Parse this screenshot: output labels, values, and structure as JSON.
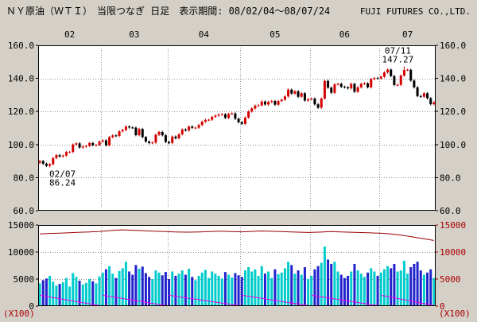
{
  "header": {
    "title": "ＮＹ原油（ＷＴＩ）　当限つなぎ 日足　表示期間: 08/02/04～08/07/24",
    "brand": "FUJI FUTURES CO.,LTD."
  },
  "chart_data": {
    "type": "candlestick+volume",
    "title": "ＮＹ原油（ＷＴＩ） 当限つなぎ 日足",
    "period": "08/02/04～08/07/24",
    "price_axis": {
      "min": 60,
      "max": 160,
      "ticks": [
        "160.0",
        "140.0",
        "120.0",
        "100.0",
        "80.0",
        "60.0"
      ]
    },
    "volume_axis": {
      "min": 0,
      "max": 15000,
      "ticks": [
        "15000",
        "10000",
        "5000",
        "0"
      ],
      "unit": "(X100)"
    },
    "month_labels": [
      "02",
      "03",
      "04",
      "05",
      "06",
      "07"
    ],
    "annotations": [
      {
        "date": "02/07",
        "lines": [
          "02/07",
          "86.24"
        ],
        "position": "below"
      },
      {
        "date": "07/11",
        "lines": [
          "07/11",
          "147.27"
        ],
        "position": "above"
      }
    ],
    "colors": {
      "up": "#d40000",
      "down": "#000000",
      "vol_up": "#00cccc",
      "vol_down": "#2222cc",
      "oi_line": "#990000",
      "expiry_line": "#ee00ee",
      "grid": "#909090",
      "axis_secondary": "#aa0000",
      "panel_bg": "#ffffff",
      "border": "#000000"
    },
    "legend_note": "candles: [date, open, high, low, close, volume(x100), open_interest(x100), expiry_series(x100)]",
    "candles": [
      [
        "02/04",
        89.0,
        90.7,
        88.3,
        90.0,
        4200,
        13350,
        2000
      ],
      [
        "02/05",
        90.0,
        90.7,
        87.7,
        88.4,
        4800,
        13380,
        1895
      ],
      [
        "02/06",
        88.4,
        89.1,
        86.4,
        87.1,
        5100,
        13400,
        1790
      ],
      [
        "02/07",
        87.1,
        88.8,
        86.24,
        88.1,
        5600,
        13430,
        1685
      ],
      [
        "02/08",
        88.1,
        92.5,
        87.4,
        91.8,
        4500,
        13450,
        1580
      ],
      [
        "02/11",
        91.8,
        94.3,
        91.1,
        93.6,
        3800,
        13470,
        1475
      ],
      [
        "02/12",
        93.6,
        94.3,
        92.1,
        92.8,
        4100,
        13500,
        1370
      ],
      [
        "02/13",
        92.8,
        94.0,
        92.1,
        93.3,
        4400,
        13520,
        1265
      ],
      [
        "02/14",
        93.3,
        96.2,
        92.6,
        95.5,
        5200,
        13550,
        1160
      ],
      [
        "02/15",
        95.5,
        96.2,
        94.8,
        95.5,
        3600,
        13570,
        1055
      ],
      [
        "02/19",
        95.5,
        100.7,
        94.8,
        100.0,
        6100,
        13600,
        950
      ],
      [
        "02/20",
        100.0,
        101.4,
        99.3,
        100.7,
        5400,
        13620,
        845
      ],
      [
        "02/21",
        100.7,
        101.4,
        97.5,
        98.2,
        4700,
        13650,
        740
      ],
      [
        "02/22",
        98.2,
        99.5,
        97.5,
        98.8,
        4000,
        13670,
        635
      ],
      [
        "02/25",
        98.8,
        99.9,
        98.1,
        99.2,
        4300,
        13700,
        530
      ],
      [
        "02/26",
        99.2,
        101.6,
        98.5,
        100.9,
        5000,
        13720,
        425
      ],
      [
        "02/27",
        100.9,
        101.6,
        98.9,
        99.6,
        4600,
        13750,
        320
      ],
      [
        "02/28",
        99.6,
        100.3,
        98.9,
        99.7,
        4200,
        13770,
        215
      ],
      [
        "02/29",
        99.7,
        102.5,
        99.0,
        101.8,
        5500,
        13800,
        110
      ],
      [
        "03/03",
        101.8,
        103.2,
        101.1,
        102.5,
        6200,
        13850,
        2000
      ],
      [
        "03/04",
        102.5,
        103.2,
        98.8,
        99.5,
        6800,
        13900,
        1900
      ],
      [
        "03/05",
        99.5,
        105.2,
        98.8,
        104.5,
        7400,
        13950,
        1800
      ],
      [
        "03/06",
        104.5,
        106.2,
        103.8,
        105.5,
        6000,
        14000,
        1700
      ],
      [
        "03/07",
        105.5,
        106.2,
        104.5,
        105.2,
        5200,
        14050,
        1600
      ],
      [
        "03/10",
        105.2,
        108.7,
        104.5,
        108.0,
        6500,
        14080,
        1500
      ],
      [
        "03/11",
        108.0,
        109.5,
        107.3,
        108.8,
        7000,
        14100,
        1400
      ],
      [
        "03/12",
        108.8,
        111.6,
        108.1,
        110.9,
        8200,
        14080,
        1300
      ],
      [
        "03/13",
        110.9,
        111.6,
        109.6,
        110.3,
        6400,
        14050,
        1200
      ],
      [
        "03/14",
        110.3,
        111.0,
        109.5,
        110.2,
        5800,
        14020,
        1100
      ],
      [
        "03/17",
        110.2,
        110.9,
        105.0,
        105.7,
        7600,
        14000,
        1000
      ],
      [
        "03/18",
        105.7,
        110.1,
        105.0,
        109.4,
        6900,
        13980,
        900
      ],
      [
        "03/19",
        109.4,
        110.1,
        103.8,
        104.5,
        7300,
        13950,
        800
      ],
      [
        "03/20",
        104.5,
        105.2,
        101.1,
        101.8,
        6100,
        13920,
        700
      ],
      [
        "03/24",
        101.8,
        102.5,
        100.2,
        100.9,
        5400,
        13900,
        600
      ],
      [
        "03/25",
        100.9,
        101.9,
        100.2,
        101.2,
        5000,
        13880,
        500
      ],
      [
        "03/26",
        101.2,
        106.6,
        100.5,
        105.9,
        6600,
        13850,
        400
      ],
      [
        "03/27",
        105.9,
        108.3,
        105.2,
        107.6,
        6200,
        13820,
        300
      ],
      [
        "03/28",
        107.6,
        108.3,
        104.9,
        105.6,
        5700,
        13800,
        200
      ],
      [
        "03/31",
        105.6,
        106.3,
        100.9,
        101.6,
        6300,
        13780,
        100
      ],
      [
        "04/01",
        101.6,
        102.3,
        100.2,
        100.9,
        5000,
        13760,
        2000
      ],
      [
        "04/02",
        100.9,
        105.5,
        100.2,
        104.8,
        6400,
        13740,
        1910
      ],
      [
        "04/03",
        104.8,
        105.5,
        103.1,
        103.8,
        5600,
        13720,
        1820
      ],
      [
        "04/04",
        103.8,
        106.9,
        103.1,
        106.2,
        6000,
        13700,
        1730
      ],
      [
        "04/07",
        106.2,
        109.8,
        105.5,
        109.1,
        6600,
        13690,
        1640
      ],
      [
        "04/08",
        109.1,
        109.8,
        107.8,
        108.5,
        5800,
        13680,
        1550
      ],
      [
        "04/09",
        108.5,
        111.6,
        107.8,
        110.9,
        6900,
        13670,
        1460
      ],
      [
        "04/10",
        110.9,
        111.6,
        109.4,
        110.1,
        5400,
        13690,
        1370
      ],
      [
        "04/11",
        110.1,
        110.8,
        109.4,
        110.2,
        4800,
        13700,
        1280
      ],
      [
        "04/14",
        110.2,
        112.5,
        109.5,
        111.8,
        5600,
        13720,
        1190
      ],
      [
        "04/15",
        111.8,
        114.5,
        111.1,
        113.8,
        6200,
        13740,
        1100
      ],
      [
        "04/16",
        113.8,
        115.6,
        113.1,
        114.9,
        6700,
        13760,
        1010
      ],
      [
        "04/17",
        114.9,
        115.6,
        114.2,
        115.0,
        5200,
        13780,
        920
      ],
      [
        "04/18",
        115.0,
        117.4,
        114.3,
        116.7,
        6400,
        13800,
        830
      ],
      [
        "04/21",
        116.7,
        118.2,
        116.0,
        117.5,
        6000,
        13820,
        740
      ],
      [
        "04/22",
        117.5,
        118.8,
        116.8,
        118.1,
        5600,
        13840,
        650
      ],
      [
        "04/23",
        118.1,
        119.0,
        117.4,
        118.3,
        5100,
        13850,
        560
      ],
      [
        "04/24",
        118.3,
        119.0,
        115.4,
        116.1,
        6300,
        13830,
        470
      ],
      [
        "04/25",
        116.1,
        119.2,
        115.4,
        118.5,
        5800,
        13810,
        380
      ],
      [
        "04/28",
        118.5,
        119.5,
        117.8,
        118.8,
        5300,
        13790,
        290
      ],
      [
        "04/29",
        118.8,
        119.5,
        114.9,
        115.6,
        6100,
        13770,
        200
      ],
      [
        "04/30",
        115.6,
        116.3,
        112.8,
        113.5,
        5700,
        13750,
        110
      ],
      [
        "05/01",
        113.5,
        114.2,
        111.8,
        112.5,
        5400,
        13740,
        2000
      ],
      [
        "05/02",
        112.5,
        117.0,
        111.8,
        116.3,
        6600,
        13760,
        1905
      ],
      [
        "05/05",
        116.3,
        120.7,
        115.6,
        120.0,
        7200,
        13790,
        1810
      ],
      [
        "05/06",
        120.0,
        122.5,
        119.3,
        121.8,
        6400,
        13820,
        1715
      ],
      [
        "05/07",
        121.8,
        124.2,
        121.1,
        123.5,
        6800,
        13850,
        1620
      ],
      [
        "05/08",
        123.5,
        124.4,
        122.8,
        123.7,
        5600,
        13880,
        1525
      ],
      [
        "05/09",
        123.7,
        126.7,
        123.0,
        126.0,
        7400,
        13900,
        1430
      ],
      [
        "05/12",
        126.0,
        126.7,
        123.5,
        124.2,
        6000,
        13880,
        1335
      ],
      [
        "05/13",
        124.2,
        126.5,
        123.5,
        125.8,
        6400,
        13860,
        1240
      ],
      [
        "05/14",
        125.8,
        127.0,
        125.1,
        126.3,
        5200,
        13840,
        1145
      ],
      [
        "05/15",
        126.3,
        127.0,
        123.4,
        124.1,
        6800,
        13820,
        1050
      ],
      [
        "05/16",
        124.1,
        127.0,
        123.4,
        126.3,
        5900,
        13800,
        955
      ],
      [
        "05/19",
        126.3,
        127.8,
        125.6,
        127.1,
        6200,
        13780,
        860
      ],
      [
        "05/20",
        127.1,
        129.8,
        126.4,
        129.1,
        7000,
        13760,
        765
      ],
      [
        "05/21",
        129.1,
        133.9,
        128.4,
        133.2,
        8200,
        13740,
        670
      ],
      [
        "05/22",
        133.2,
        133.9,
        130.1,
        130.8,
        7600,
        13720,
        575
      ],
      [
        "05/23",
        130.8,
        132.9,
        130.1,
        132.2,
        6000,
        13700,
        480
      ],
      [
        "05/27",
        132.2,
        132.9,
        128.2,
        128.9,
        6600,
        13680,
        385
      ],
      [
        "05/28",
        128.9,
        131.7,
        128.2,
        131.0,
        5800,
        13660,
        290
      ],
      [
        "05/29",
        131.0,
        131.7,
        125.9,
        126.6,
        7200,
        13640,
        195
      ],
      [
        "05/30",
        126.6,
        128.1,
        125.9,
        127.4,
        5000,
        13620,
        100
      ],
      [
        "06/02",
        127.4,
        128.5,
        126.7,
        127.8,
        5600,
        13640,
        2000
      ],
      [
        "06/03",
        127.8,
        128.5,
        123.6,
        124.3,
        6800,
        13660,
        1905
      ],
      [
        "06/04",
        124.3,
        125.0,
        121.6,
        122.3,
        7400,
        13680,
        1810
      ],
      [
        "06/05",
        122.3,
        128.5,
        121.6,
        127.8,
        8000,
        13700,
        1715
      ],
      [
        "06/06",
        127.8,
        139.2,
        127.1,
        138.5,
        11000,
        13730,
        1620
      ],
      [
        "06/09",
        138.5,
        139.2,
        133.7,
        134.4,
        8600,
        13760,
        1525
      ],
      [
        "06/10",
        134.4,
        135.1,
        130.6,
        131.3,
        7800,
        13780,
        1430
      ],
      [
        "06/11",
        131.3,
        137.1,
        130.6,
        136.4,
        8200,
        13760,
        1335
      ],
      [
        "06/12",
        136.4,
        137.4,
        135.7,
        136.7,
        6400,
        13740,
        1240
      ],
      [
        "06/13",
        136.7,
        137.4,
        134.2,
        134.9,
        5800,
        13720,
        1145
      ],
      [
        "06/16",
        134.9,
        135.6,
        133.9,
        134.6,
        5200,
        13700,
        1050
      ],
      [
        "06/17",
        134.6,
        135.3,
        133.3,
        134.0,
        5600,
        13680,
        955
      ],
      [
        "06/18",
        134.0,
        137.4,
        133.3,
        136.7,
        6400,
        13660,
        860
      ],
      [
        "06/19",
        136.7,
        137.4,
        131.2,
        131.9,
        7800,
        13640,
        765
      ],
      [
        "06/20",
        131.9,
        135.3,
        131.2,
        134.6,
        6600,
        13620,
        670
      ],
      [
        "06/23",
        134.6,
        137.4,
        133.9,
        136.7,
        6000,
        13600,
        575
      ],
      [
        "06/24",
        136.7,
        137.7,
        136.0,
        137.0,
        5400,
        13580,
        480
      ],
      [
        "06/25",
        137.0,
        137.7,
        133.9,
        134.6,
        6200,
        13560,
        385
      ],
      [
        "06/26",
        134.6,
        140.3,
        133.9,
        139.6,
        7000,
        13540,
        290
      ],
      [
        "06/27",
        139.6,
        140.9,
        138.9,
        140.2,
        6400,
        13520,
        195
      ],
      [
        "06/30",
        140.2,
        140.9,
        139.3,
        140.0,
        5600,
        13500,
        100
      ],
      [
        "07/01",
        140.0,
        141.7,
        139.3,
        141.0,
        6200,
        13470,
        2000
      ],
      [
        "07/02",
        141.0,
        144.3,
        140.3,
        143.6,
        6800,
        13440,
        1882
      ],
      [
        "07/03",
        143.6,
        146.0,
        142.9,
        145.3,
        7400,
        13400,
        1764
      ],
      [
        "07/07",
        145.3,
        146.0,
        140.7,
        141.4,
        7000,
        13350,
        1646
      ],
      [
        "07/08",
        141.4,
        142.1,
        135.3,
        136.0,
        7800,
        13280,
        1528
      ],
      [
        "07/09",
        136.0,
        136.8,
        135.3,
        136.1,
        6400,
        13200,
        1410
      ],
      [
        "07/10",
        136.1,
        142.4,
        135.4,
        141.7,
        6600,
        13120,
        1292
      ],
      [
        "07/11",
        141.7,
        147.27,
        141.0,
        145.1,
        8400,
        13040,
        1174
      ],
      [
        "07/14",
        145.1,
        145.9,
        144.4,
        145.2,
        6000,
        12950,
        1056
      ],
      [
        "07/15",
        145.2,
        145.9,
        138.0,
        138.7,
        7200,
        12850,
        938
      ],
      [
        "07/16",
        138.7,
        139.4,
        133.9,
        134.6,
        7800,
        12750,
        820
      ],
      [
        "07/17",
        134.6,
        135.3,
        128.6,
        129.3,
        8200,
        12650,
        702
      ],
      [
        "07/18",
        129.3,
        130.0,
        128.2,
        128.9,
        6600,
        12550,
        584
      ],
      [
        "07/21",
        128.9,
        131.7,
        128.2,
        131.0,
        5800,
        12450,
        466
      ],
      [
        "07/22",
        131.0,
        131.7,
        127.3,
        128.0,
        6200,
        12350,
        348
      ],
      [
        "07/23",
        128.0,
        128.7,
        123.7,
        124.4,
        6800,
        12250,
        230
      ],
      [
        "07/24",
        124.4,
        126.2,
        123.7,
        125.5,
        5200,
        12150,
        112
      ]
    ]
  }
}
